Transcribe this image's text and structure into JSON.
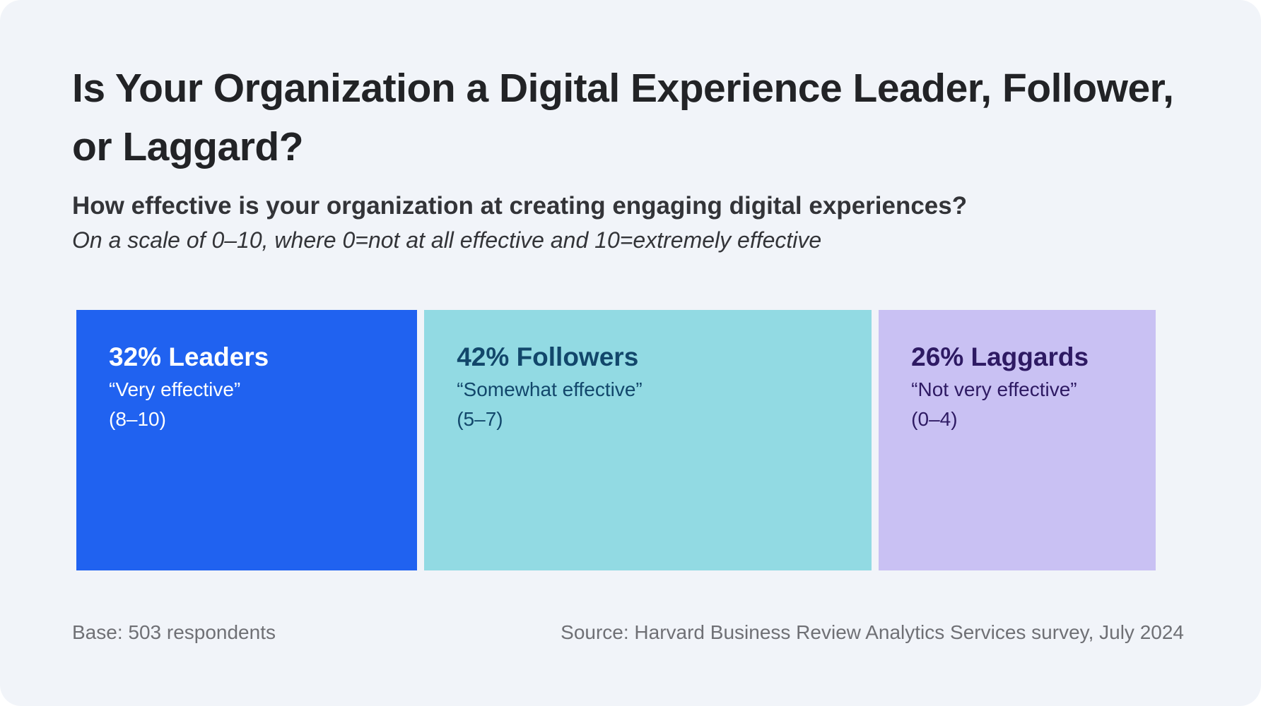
{
  "title": "Is Your Organization a Digital Experience Leader, Follower, or Laggard?",
  "subtitle": "How effective is your organization at creating engaging digital experiences?",
  "scale_note": "On a scale of 0–10, where 0=not at all effective and 10=extremely effective",
  "chart_data": {
    "type": "bar",
    "orientation": "stacked-horizontal-proportional",
    "categories": [
      "Leaders",
      "Followers",
      "Laggards"
    ],
    "values": [
      32,
      42,
      26
    ],
    "unit": "%",
    "segments": [
      {
        "label": "32% Leaders",
        "description": "“Very effective”",
        "range": "(8–10)",
        "value": 32,
        "color": "#2062f0",
        "text_color": "#ffffff"
      },
      {
        "label": "42% Followers",
        "description": "“Somewhat effective”",
        "range": "(5–7)",
        "value": 42,
        "color": "#92dae3",
        "text_color": "#12476b"
      },
      {
        "label": "26% Laggards",
        "description": "“Not very effective”",
        "range": "(0–4)",
        "value": 26,
        "color": "#c9c1f3",
        "text_color": "#2e1a63"
      }
    ]
  },
  "footer": {
    "base": "Base: 503 respondents",
    "source": "Source: Harvard Business Review Analytics Services survey, July 2024"
  }
}
